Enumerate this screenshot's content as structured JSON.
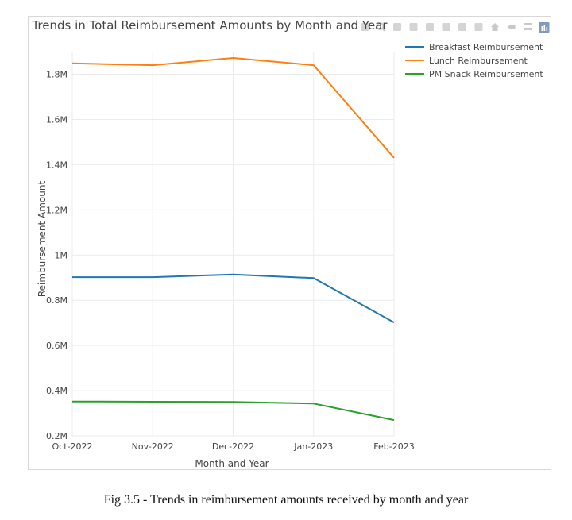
{
  "caption": "Fig 3.5 - Trends in reimbursement amounts received by month and year",
  "chart_data": {
    "type": "line",
    "title": "Trends in Total Reimbursement Amounts by Month and Year",
    "xlabel": "Month and Year",
    "ylabel": "Reimbursement Amount",
    "categories": [
      "Oct-2022",
      "Nov-2022",
      "Dec-2022",
      "Jan-2023",
      "Feb-2023"
    ],
    "ylim": [
      0.2,
      1.9
    ],
    "yticks": [
      0.2,
      0.4,
      0.6,
      0.8,
      1.0,
      1.2,
      1.4,
      1.6,
      1.8
    ],
    "ytick_labels": [
      "0.2M",
      "0.4M",
      "0.6M",
      "0.8M",
      "1M",
      "1.2M",
      "1.4M",
      "1.6M",
      "1.8M"
    ],
    "y_unit": "millions",
    "grid": true,
    "legend_position": "top-right",
    "series": [
      {
        "name": "Breakfast Reimbursement",
        "color": "#1f77b4",
        "values": [
          0.902,
          0.902,
          0.914,
          0.898,
          0.702
        ]
      },
      {
        "name": "Lunch Reimbursement",
        "color": "#ff7f0e",
        "values": [
          1.848,
          1.84,
          1.872,
          1.84,
          1.43
        ]
      },
      {
        "name": "PM Snack Reimbursement",
        "color": "#2ca02c",
        "values": [
          0.352,
          0.351,
          0.35,
          0.343,
          0.27
        ]
      }
    ]
  },
  "toolbar": {
    "icons": [
      "camera-icon",
      "zoom-icon",
      "pan-icon",
      "box-select-icon",
      "lasso-select-icon",
      "zoom-in-icon",
      "zoom-out-icon",
      "autoscale-icon",
      "home-icon",
      "spike-lines-icon",
      "compare-hover-icon",
      "plotly-logo-icon"
    ],
    "icon_color": "#c9c9c9"
  }
}
